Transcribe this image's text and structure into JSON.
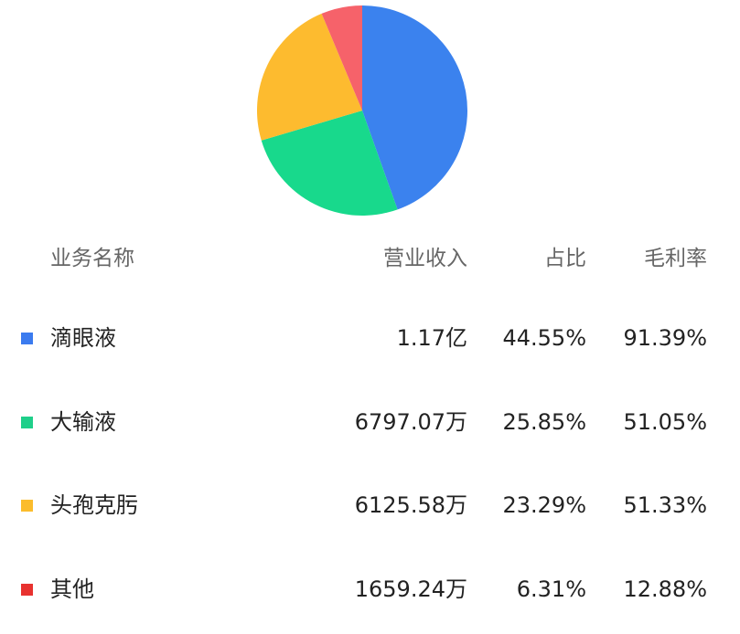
{
  "chart_data": {
    "type": "pie",
    "categories": [
      "滴眼液",
      "大输液",
      "头孢克肟",
      "其他"
    ],
    "values": [
      44.55,
      25.85,
      23.29,
      6.31
    ],
    "colors": [
      "#3B82EE",
      "#18D98C",
      "#FDBB2F",
      "#F6626A"
    ],
    "legend_colors": [
      "#3B7BEF",
      "#1FCF8A",
      "#FBBC2C",
      "#E8322F"
    ],
    "start_angle": "top",
    "direction": "clockwise"
  },
  "table": {
    "headers": {
      "name": "业务名称",
      "revenue": "营业收入",
      "share": "占比",
      "margin": "毛利率"
    },
    "rows": [
      {
        "name": "滴眼液",
        "revenue": "1.17亿",
        "share": "44.55%",
        "margin": "91.39%"
      },
      {
        "name": "大输液",
        "revenue": "6797.07万",
        "share": "25.85%",
        "margin": "51.05%"
      },
      {
        "name": "头孢克肟",
        "revenue": "6125.58万",
        "share": "23.29%",
        "margin": "51.33%"
      },
      {
        "name": "其他",
        "revenue": "1659.24万",
        "share": "6.31%",
        "margin": "12.88%"
      }
    ]
  }
}
